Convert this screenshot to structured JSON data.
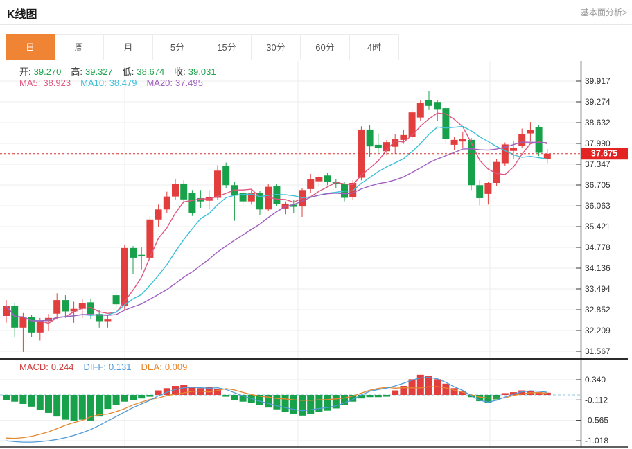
{
  "header": {
    "title": "K线图",
    "link": "基本面分析>"
  },
  "tabs": [
    {
      "name": "tab-day",
      "label": "日",
      "active": true
    },
    {
      "name": "tab-week",
      "label": "周",
      "active": false
    },
    {
      "name": "tab-month",
      "label": "月",
      "active": false
    },
    {
      "name": "tab-5min",
      "label": "5分",
      "active": false
    },
    {
      "name": "tab-15min",
      "label": "15分",
      "active": false
    },
    {
      "name": "tab-30min",
      "label": "30分",
      "active": false
    },
    {
      "name": "tab-60min",
      "label": "60分",
      "active": false
    },
    {
      "name": "tab-4hour",
      "label": "4时",
      "active": false
    }
  ],
  "quote": {
    "ohlc": [
      {
        "name": "open",
        "label": "开:",
        "value": "39.270"
      },
      {
        "name": "high",
        "label": "高:",
        "value": "39.327"
      },
      {
        "name": "low",
        "label": "低:",
        "value": "38.674"
      },
      {
        "name": "close",
        "label": "收:",
        "value": "39.031"
      }
    ],
    "ohlc_value_color": "#1fa44d",
    "ma": [
      {
        "name": "ma5",
        "label": "MA5:",
        "value": "38.923",
        "color": "#e0567e"
      },
      {
        "name": "ma10",
        "label": "MA10:",
        "value": "38.479",
        "color": "#3fc0d8"
      },
      {
        "name": "ma20",
        "label": "MA20:",
        "value": "37.495",
        "color": "#a05fc0"
      }
    ]
  },
  "macd_info": [
    {
      "name": "macd",
      "label": "MACD:",
      "value": "0.244",
      "color": "#cf3e3e"
    },
    {
      "name": "diff",
      "label": "DIFF:",
      "value": "0.131",
      "color": "#4f9ad8"
    },
    {
      "name": "dea",
      "label": "DEA:",
      "value": "0.009",
      "color": "#e5872e"
    }
  ],
  "chart_data": {
    "type": "candlestick",
    "title": "K线图",
    "price_axis_labels": [
      "39.917",
      "39.274",
      "38.632",
      "37.990",
      "37.347",
      "36.705",
      "36.063",
      "35.421",
      "34.778",
      "34.136",
      "33.494",
      "32.852",
      "32.209",
      "31.567"
    ],
    "macd_axis_labels": [
      "0.340",
      "-0.112",
      "-0.565",
      "-1.018"
    ],
    "last_price": "37.675",
    "ma_periods": [
      5,
      10,
      20
    ],
    "candles": [
      [
        32.66,
        33.15,
        32.45,
        32.98
      ],
      [
        32.98,
        33.06,
        32.0,
        32.3
      ],
      [
        32.3,
        32.75,
        31.55,
        32.62
      ],
      [
        32.62,
        32.7,
        32.0,
        32.15
      ],
      [
        32.15,
        32.6,
        31.9,
        32.5
      ],
      [
        32.5,
        32.72,
        32.2,
        32.6
      ],
      [
        32.73,
        33.36,
        32.55,
        33.15
      ],
      [
        33.15,
        33.3,
        32.6,
        32.8
      ],
      [
        32.8,
        33.1,
        32.45,
        32.88
      ],
      [
        32.88,
        33.2,
        32.6,
        33.05
      ],
      [
        33.08,
        33.2,
        32.55,
        32.72
      ],
      [
        32.72,
        32.85,
        32.3,
        32.5
      ],
      [
        32.5,
        32.68,
        32.3,
        32.55
      ],
      [
        33.3,
        33.4,
        32.9,
        33.02
      ],
      [
        32.96,
        34.85,
        32.85,
        34.76
      ],
      [
        34.76,
        34.82,
        33.95,
        34.46
      ],
      [
        34.55,
        34.8,
        34.1,
        34.5
      ],
      [
        34.46,
        35.75,
        34.35,
        35.64
      ],
      [
        35.64,
        36.1,
        35.4,
        35.95
      ],
      [
        35.95,
        36.5,
        35.85,
        36.35
      ],
      [
        36.35,
        36.9,
        36.25,
        36.73
      ],
      [
        36.75,
        36.85,
        36.15,
        36.26
      ],
      [
        36.45,
        36.55,
        35.75,
        35.85
      ],
      [
        36.3,
        36.55,
        36.0,
        36.2
      ],
      [
        36.22,
        36.55,
        35.95,
        36.33
      ],
      [
        36.31,
        37.32,
        36.25,
        37.15
      ],
      [
        37.3,
        37.4,
        36.6,
        36.7
      ],
      [
        36.7,
        36.8,
        35.6,
        36.38
      ],
      [
        36.45,
        36.55,
        36.1,
        36.2
      ],
      [
        36.2,
        36.55,
        36.1,
        36.45
      ],
      [
        36.45,
        36.52,
        35.78,
        35.95
      ],
      [
        35.95,
        36.75,
        35.9,
        36.65
      ],
      [
        36.68,
        36.75,
        36.05,
        36.11
      ],
      [
        35.98,
        36.2,
        35.8,
        36.13
      ],
      [
        36.1,
        36.25,
        35.85,
        36.03
      ],
      [
        36.04,
        36.6,
        35.72,
        36.55
      ],
      [
        36.58,
        37.05,
        36.45,
        36.89
      ],
      [
        36.82,
        37.05,
        36.65,
        36.96
      ],
      [
        37.0,
        37.08,
        36.7,
        36.8
      ],
      [
        36.8,
        36.9,
        36.6,
        36.74
      ],
      [
        36.73,
        36.8,
        36.2,
        36.31
      ],
      [
        36.34,
        36.85,
        36.25,
        36.77
      ],
      [
        36.93,
        38.52,
        36.85,
        38.42
      ],
      [
        38.42,
        38.55,
        37.58,
        37.9
      ],
      [
        37.95,
        38.3,
        37.68,
        37.85
      ],
      [
        37.75,
        38.1,
        37.62,
        38.03
      ],
      [
        37.89,
        38.29,
        37.67,
        38.14
      ],
      [
        38.1,
        38.42,
        37.98,
        38.25
      ],
      [
        38.2,
        39.05,
        38.08,
        38.95
      ],
      [
        38.79,
        39.33,
        38.68,
        39.25
      ],
      [
        39.32,
        39.6,
        39.02,
        39.15
      ],
      [
        39.27,
        39.327,
        38.674,
        39.031
      ],
      [
        39.08,
        39.15,
        37.98,
        38.13
      ],
      [
        37.95,
        38.2,
        37.78,
        38.1
      ],
      [
        38.05,
        38.35,
        37.85,
        38.12
      ],
      [
        38.1,
        38.16,
        36.55,
        36.7
      ],
      [
        36.7,
        36.85,
        36.08,
        36.3
      ],
      [
        36.43,
        36.8,
        36.1,
        36.77
      ],
      [
        36.77,
        37.5,
        36.68,
        37.42
      ],
      [
        37.38,
        38.02,
        37.3,
        37.96
      ],
      [
        37.76,
        38.08,
        37.52,
        37.85
      ],
      [
        37.92,
        38.45,
        37.85,
        38.29
      ],
      [
        38.3,
        38.65,
        38.05,
        38.4
      ],
      [
        38.49,
        38.56,
        37.6,
        37.7
      ],
      [
        37.5,
        37.82,
        37.38,
        37.675
      ]
    ],
    "macd": {
      "diff": [
        -1.02,
        -1.04,
        -1.05,
        -1.05,
        -1.04,
        -1.02,
        -0.99,
        -0.95,
        -0.9,
        -0.84,
        -0.77,
        -0.68,
        -0.58,
        -0.48,
        -0.38,
        -0.28,
        -0.2,
        -0.12,
        -0.02,
        0.06,
        0.12,
        0.16,
        0.17,
        0.16,
        0.15,
        0.16,
        0.12,
        0.05,
        -0.02,
        -0.08,
        -0.14,
        -0.19,
        -0.24,
        -0.28,
        -0.32,
        -0.35,
        -0.33,
        -0.3,
        -0.28,
        -0.24,
        -0.18,
        -0.1,
        0.0,
        0.08,
        0.12,
        0.15,
        0.2,
        0.26,
        0.33,
        0.38,
        0.39,
        0.36,
        0.28,
        0.18,
        0.1,
        -0.02,
        -0.12,
        -0.16,
        -0.12,
        -0.05,
        0.02,
        0.07,
        0.09,
        0.08,
        0.06
      ],
      "hist": [
        -0.12,
        -0.15,
        -0.2,
        -0.26,
        -0.33,
        -0.4,
        -0.48,
        -0.55,
        -0.57,
        -0.55,
        -0.57,
        -0.48,
        -0.31,
        -0.22,
        -0.15,
        -0.12,
        -0.08,
        -0.04,
        0.1,
        0.15,
        0.2,
        0.23,
        0.18,
        0.15,
        0.17,
        0.13,
        -0.04,
        -0.12,
        -0.15,
        -0.18,
        -0.22,
        -0.28,
        -0.32,
        -0.38,
        -0.42,
        -0.46,
        -0.42,
        -0.38,
        -0.35,
        -0.3,
        -0.22,
        -0.15,
        -0.08,
        -0.05,
        -0.05,
        -0.04,
        0.1,
        0.2,
        0.35,
        0.45,
        0.42,
        0.35,
        0.25,
        0.15,
        0.08,
        -0.05,
        -0.14,
        -0.18,
        -0.1,
        0.04,
        0.06,
        0.1,
        0.08,
        0.06,
        0.05
      ]
    },
    "colors": {
      "up": "#e23e3e",
      "down": "#18a14b",
      "ma5": "#e0567e",
      "ma10": "#3fc0d8",
      "ma20": "#a05fc0",
      "diff": "#4f9ad8",
      "dea": "#e5872e",
      "last_line": "#e03131",
      "badge": "#e32222",
      "grid": "#ededed",
      "axis": "#333333",
      "zero_line": "#8fc8dc",
      "active_tab": "#ef8435"
    }
  }
}
